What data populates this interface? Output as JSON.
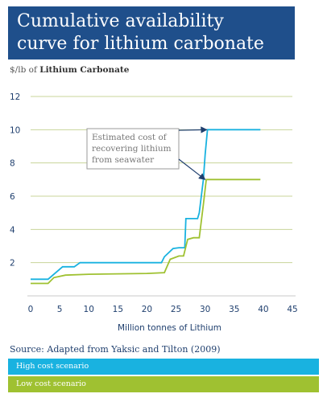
{
  "title": {
    "line1": "Cumulative availability",
    "line2": "curve for lithium carbonate"
  },
  "ylabel": {
    "prefix": "$/lb of",
    "bold": "Lithium Carbonate"
  },
  "source": "Source: Adapted from Yaksic and Tilton (2009)",
  "colors": {
    "title_bg": "#1f4f8b",
    "high": "#19b2e0",
    "low": "#9fc131",
    "arrow": "#1f3f6e",
    "grid": "#c8d59a"
  },
  "chart_data": {
    "type": "line",
    "xlabel": "Million tonnes of Lithium",
    "xlim": [
      0,
      45
    ],
    "ylim": [
      0,
      12
    ],
    "x_ticks": [
      "0",
      "5",
      "10",
      "15",
      "20",
      "25",
      "30",
      "35",
      "40",
      "45"
    ],
    "y_ticks": [
      "2",
      "4",
      "6",
      "8",
      "10",
      "12"
    ],
    "grid": "horizontal",
    "annotation": {
      "lines": [
        "Estimated cost of",
        "recovering lithium",
        "from seawater"
      ]
    },
    "series": [
      {
        "name": "High cost scenario",
        "points": [
          [
            0,
            1
          ],
          [
            3,
            1
          ],
          [
            5.5,
            1.75
          ],
          [
            7.5,
            1.75
          ],
          [
            8.5,
            2
          ],
          [
            22.5,
            2
          ],
          [
            23,
            2.35
          ],
          [
            24.5,
            2.85
          ],
          [
            25.5,
            2.9
          ],
          [
            26.5,
            2.9
          ],
          [
            26.7,
            4.65
          ],
          [
            28.7,
            4.65
          ],
          [
            29,
            5
          ],
          [
            29.7,
            7
          ],
          [
            30,
            8.5
          ],
          [
            30.4,
            10
          ],
          [
            39.5,
            10
          ]
        ]
      },
      {
        "name": "Low cost scenario",
        "points": [
          [
            0,
            0.75
          ],
          [
            3,
            0.75
          ],
          [
            4,
            1.1
          ],
          [
            6,
            1.25
          ],
          [
            10,
            1.3
          ],
          [
            20,
            1.35
          ],
          [
            23,
            1.4
          ],
          [
            24,
            2.2
          ],
          [
            25.5,
            2.4
          ],
          [
            26.3,
            2.4
          ],
          [
            27,
            3.4
          ],
          [
            28,
            3.5
          ],
          [
            29,
            3.5
          ],
          [
            29.7,
            5.5
          ],
          [
            30.2,
            7
          ],
          [
            39.5,
            7
          ]
        ]
      }
    ]
  }
}
